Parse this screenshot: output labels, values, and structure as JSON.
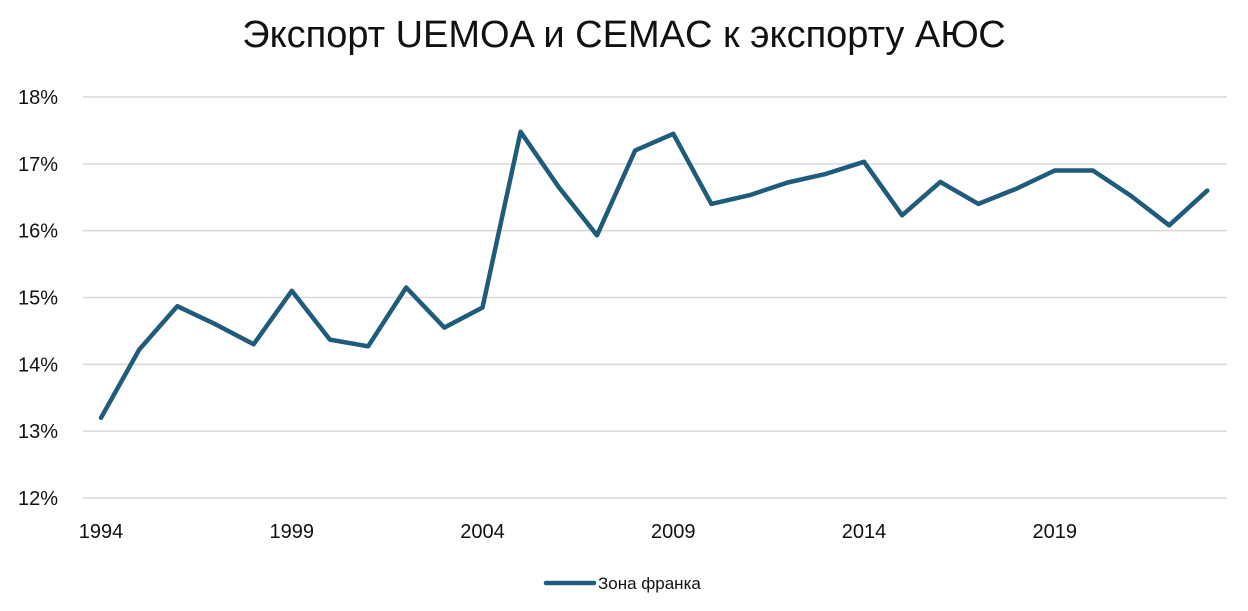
{
  "chart_data": {
    "type": "line",
    "title": "Экспорт UEMOA и CEMAC к экспорту АЮС",
    "xlabel": "",
    "ylabel": "",
    "x": [
      1994,
      1995,
      1996,
      1997,
      1998,
      1999,
      2000,
      2001,
      2002,
      2003,
      2004,
      2005,
      2006,
      2007,
      2008,
      2009,
      2010,
      2011,
      2012,
      2013,
      2014,
      2015,
      2016,
      2017,
      2018,
      2019,
      2020,
      2021,
      2022,
      2023
    ],
    "series": [
      {
        "name": "Зона франка",
        "color": "#1f5b7a",
        "values": [
          13.2,
          14.22,
          14.87,
          14.6,
          14.3,
          15.1,
          14.37,
          14.27,
          15.15,
          14.55,
          14.85,
          17.48,
          16.65,
          15.93,
          17.2,
          17.45,
          16.4,
          16.53,
          16.72,
          16.85,
          17.03,
          16.23,
          16.73,
          16.4,
          16.63,
          16.9,
          16.9,
          16.52,
          16.08,
          16.6
        ]
      }
    ],
    "ylim": [
      12,
      18
    ],
    "yticks": [
      "12%",
      "13%",
      "14%",
      "15%",
      "16%",
      "17%",
      "18%"
    ],
    "xticks": [
      1994,
      1999,
      2004,
      2009,
      2014,
      2019
    ],
    "grid": true,
    "legend": "bottom-center"
  }
}
